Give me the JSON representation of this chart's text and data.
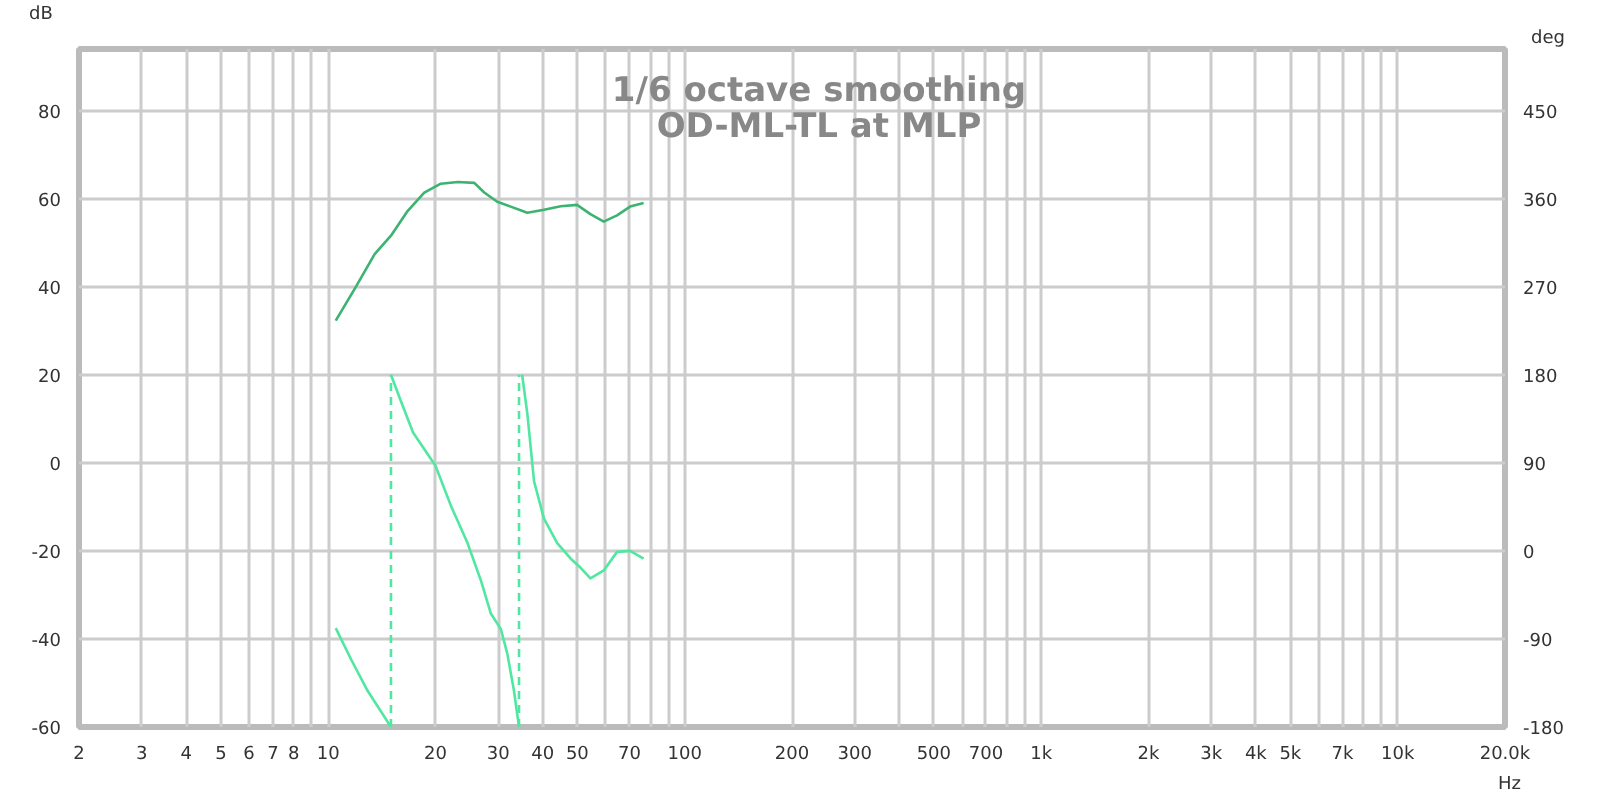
{
  "chart_data": {
    "type": "line",
    "title": "1/6 octave smoothing",
    "subtitle": "OD-ML-TL at MLP",
    "xlabel": "Hz",
    "ylabel": "dB",
    "y2label": "deg",
    "log": "x",
    "grid": true,
    "line_style": "solid",
    "marker": "none",
    "xlim": [
      2,
      20000
    ],
    "ylim": [
      -60,
      94
    ],
    "y2lim": [
      -180,
      513
    ],
    "xticks": [
      2,
      3,
      4,
      5,
      6,
      7,
      8,
      {
        "value": 9,
        "label": null
      },
      10,
      20,
      30,
      40,
      50,
      {
        "value": 60,
        "label": null
      },
      70,
      {
        "value": 80,
        "label": null
      },
      {
        "value": 90,
        "label": null
      },
      100,
      200,
      300,
      {
        "value": 400,
        "label": null
      },
      500,
      {
        "value": 600,
        "label": null
      },
      700,
      {
        "value": 800,
        "label": null
      },
      {
        "value": 900,
        "label": null
      },
      {
        "value": 1000,
        "label": "1k"
      },
      {
        "value": 2000,
        "label": "2k"
      },
      {
        "value": 3000,
        "label": "3k"
      },
      {
        "value": 4000,
        "label": "4k"
      },
      {
        "value": 5000,
        "label": "5k"
      },
      {
        "value": 6000,
        "label": null
      },
      {
        "value": 7000,
        "label": "7k"
      },
      {
        "value": 8000,
        "label": null
      },
      {
        "value": 9000,
        "label": null
      },
      {
        "value": 10000,
        "label": "10k"
      },
      {
        "value": 20000,
        "label": "20.0k"
      }
    ],
    "yticks": [
      -60,
      -40,
      -20,
      0,
      20,
      40,
      60,
      80
    ],
    "y2ticks": [
      -180,
      -90,
      0,
      90,
      180,
      270,
      360,
      450
    ],
    "series": [
      {
        "color": "#3cb371",
        "x": [
          10.5,
          11.9,
          13.5,
          15.0,
          16.7,
          18.6,
          20.7,
          23.1,
          25.7,
          27.4,
          29.8,
          32.5,
          36.2,
          40.3,
          44.9,
          49.9,
          54.4,
          59.3,
          64.6,
          70.3,
          76.7
        ],
        "values": [
          32.3,
          39.7,
          47.4,
          51.6,
          57.2,
          61.4,
          63.4,
          63.8,
          63.6,
          61.4,
          59.3,
          58.2,
          56.8,
          57.5,
          58.3,
          58.6,
          56.5,
          54.8,
          56.2,
          58.2,
          59.0
        ]
      },
      {
        "color": "#50e8a0",
        "axis": "y2",
        "x": [
          10.5,
          11.6,
          12.9,
          15.0
        ],
        "values": [
          -79,
          -111,
          -143,
          -180
        ]
      },
      {
        "color": "#50e8a0",
        "axis": "y2",
        "line_style": "dashed",
        "x": [
          15.0,
          15.0
        ],
        "values": [
          -180,
          180
        ]
      },
      {
        "color": "#50e8a0",
        "axis": "y2",
        "x": [
          15.0,
          16.0,
          17.3,
          20.0,
          22.1,
          24.6,
          26.8,
          28.6,
          30.5,
          31.8,
          33.2,
          34.3
        ],
        "values": [
          180,
          153,
          121,
          87,
          46,
          8,
          -30,
          -64,
          -80,
          -105,
          -143,
          -180
        ]
      },
      {
        "color": "#50e8a0",
        "axis": "y2",
        "line_style": "dashed",
        "x": [
          34.3,
          34.3
        ],
        "values": [
          -180,
          180
        ]
      },
      {
        "color": "#50e8a0",
        "axis": "y2",
        "x": [
          35.0,
          36.2,
          37.8,
          40.3,
          43.9,
          47.9,
          51.0,
          54.4,
          59.3,
          64.6,
          70.3,
          76.7
        ],
        "values": [
          180,
          140,
          71,
          33,
          8,
          -8,
          -17,
          -28,
          -20,
          -1,
          0,
          -8
        ]
      }
    ]
  }
}
